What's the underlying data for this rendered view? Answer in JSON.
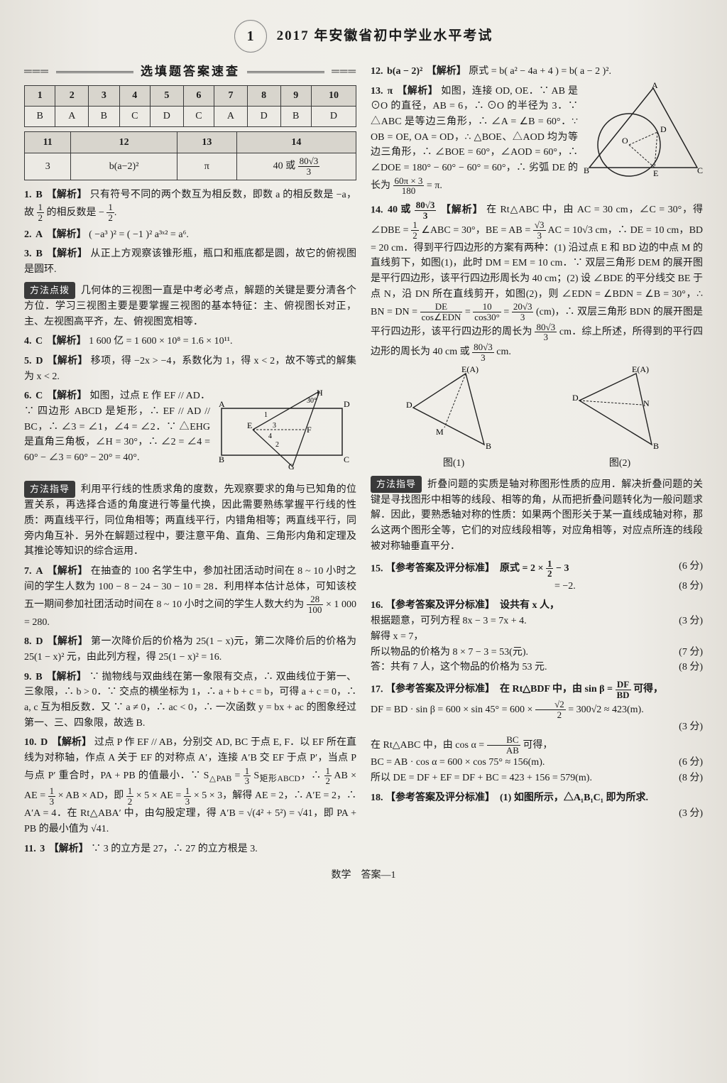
{
  "page_number": "1",
  "title": "2017 年安徽省初中学业水平考试",
  "quickcheck_label": "选填题答案速查",
  "table1": {
    "headers": [
      "1",
      "2",
      "3",
      "4",
      "5",
      "6",
      "7",
      "8",
      "9",
      "10"
    ],
    "row": [
      "B",
      "A",
      "B",
      "C",
      "D",
      "C",
      "A",
      "D",
      "B",
      "D"
    ]
  },
  "table2": {
    "headers": [
      "11",
      "12",
      "13",
      "14"
    ],
    "row": [
      "3",
      "b(a−2)²",
      "π",
      "40 或 <span class='frac'><span class='n'>80√3</span><span class='d'>3</span></span>"
    ]
  },
  "left": {
    "e1": {
      "n": "1.",
      "a": "B",
      "tag": "【解析】",
      "text": "只有符号不同的两个数互为相反数，即数 a 的相反数是 −a，故 <span class='frac'><span class='n'>1</span><span class='d'>2</span></span> 的相反数是 − <span class='frac'><span class='n'>1</span><span class='d'>2</span></span>."
    },
    "e2": {
      "n": "2.",
      "a": "A",
      "tag": "【解析】",
      "text": "( −a³ )² = ( −1 )² a³ˣ² = a⁶."
    },
    "e3": {
      "n": "3.",
      "a": "B",
      "tag": "【解析】",
      "text": "从正上方观察该锥形瓶，瓶口和瓶底都是圆，故它的俯视图是圆环."
    },
    "m1_badge": "方法点拨",
    "m1_text": "几何体的三视图一直是中考必考点，解题的关键是要分清各个方位．学习三视图主要是要掌握三视图的基本特征：主、俯视图长对正，主、左视图高平齐，左、俯视图宽相等．",
    "e4": {
      "n": "4.",
      "a": "C",
      "tag": "【解析】",
      "text": "1 600 亿 = 1 600 × 10⁸ = 1.6 × 10¹¹."
    },
    "e5": {
      "n": "5.",
      "a": "D",
      "tag": "【解析】",
      "text": "移项，得 −2x > −4，系数化为 1，得 x < 2，故不等式的解集为 x < 2."
    },
    "e6": {
      "n": "6.",
      "a": "C",
      "tag": "【解析】",
      "text": "如图，过点 E 作 EF // AD．∵ 四边形 ABCD 是矩形，∴ EF // AD // BC，∴ ∠3 = ∠1，∠4 = ∠2．∵ △EHG 是直角三角板，∠H = 30°，∴ ∠2 = ∠4 = 60° − ∠3 = 60° − 20° = 40°."
    },
    "m2_badge": "方法指导",
    "m2_text": "利用平行线的性质求角的度数，先观察要求的角与已知角的位置关系，再选择合适的角度进行等量代换，因此需要熟练掌握平行线的性质：两直线平行，同位角相等；两直线平行，内错角相等；两直线平行，同旁内角互补．另外在解题过程中，要注意平角、直角、三角形内角和定理及其推论等知识的综合运用．",
    "e7": {
      "n": "7.",
      "a": "A",
      "tag": "【解析】",
      "text": "在抽查的 100 名学生中，参加社团活动时间在 8 ~ 10 小时之间的学生人数为 100 − 8 − 24 − 30 − 10 = 28．利用样本估计总体，可知该校五一期间参加社团活动时间在 8 ~ 10 小时之间的学生人数大约为 <span class='frac'><span class='n'>28</span><span class='d'>100</span></span> × 1 000 = 280."
    },
    "e8": {
      "n": "8.",
      "a": "D",
      "tag": "【解析】",
      "text": "第一次降价后的价格为 25(1 − x)元，第二次降价后的价格为 25(1 − x)² 元，由此列方程，得 25(1 − x)² = 16."
    },
    "e9": {
      "n": "9.",
      "a": "B",
      "tag": "【解析】",
      "text": "∵ 抛物线与双曲线在第一象限有交点，∴ 双曲线位于第一、三象限，∴ b > 0．∵ 交点的横坐标为 1，∴ a + b + c = b，可得 a + c = 0，∴ a, c 互为相反数．又 ∵ a ≠ 0，∴ ac < 0，∴ 一次函数 y = bx + ac 的图象经过第一、三、四象限，故选 B."
    },
    "e10": {
      "n": "10.",
      "a": "D",
      "tag": "【解析】",
      "text": "过点 P 作 EF // AB，分别交 AD, BC 于点 E, F．以 EF 所在直线为对称轴，作点 A 关于 EF 的对称点 A′，连接 A′B 交 EF 于点 P′，当点 P 与点 P′ 重合时，PA + PB 的值最小．∵ S<sub>△PAB</sub> = <span class='frac'><span class='n'>1</span><span class='d'>3</span></span> S<sub>矩形ABCD</sub>，∴ <span class='frac'><span class='n'>1</span><span class='d'>2</span></span> AB × AE = <span class='frac'><span class='n'>1</span><span class='d'>3</span></span> × AB × AD，即 <span class='frac'><span class='n'>1</span><span class='d'>2</span></span> × 5 × AE = <span class='frac'><span class='n'>1</span><span class='d'>3</span></span> × 5 × 3，解得 AE = 2，∴ A′E = 2，∴ A′A = 4．在 Rt△ABA′ 中，由勾股定理，得 A′B = √(4² + 5²) = √41，即 PA + PB 的最小值为 √41."
    },
    "e11": {
      "n": "11.",
      "a": "3",
      "tag": "【解析】",
      "text": "∵ 3 的立方是 27，∴ 27 的立方根是 3."
    }
  },
  "right": {
    "e12": {
      "n": "12.",
      "a": "b(a − 2)²",
      "tag": "【解析】",
      "text": "原式 = b( a² − 4a + 4 ) = b( a − 2 )²."
    },
    "e13": {
      "n": "13.",
      "a": "π",
      "tag": "【解析】",
      "text": "如图，连接 OD, OE．∵ AB 是 ⊙O 的直径，AB = 6，∴ ⊙O 的半径为 3．∵ △ABC 是等边三角形，∴ ∠A = ∠B = 60°．∵ OB = OE, OA = OD，∴ △BOE、△AOD 均为等边三角形，∴ ∠BOE = 60°，∠AOD = 60°，∴ ∠DOE = 180° − 60° − 60° = 60°，∴ 劣弧 DE 的长为 <span class='frac'><span class='n'>60π × 3</span><span class='d'>180</span></span> = π."
    },
    "e14": {
      "n": "14.",
      "a": "40 或 <span class='frac'><span class='n'>80√3</span><span class='d'>3</span></span>",
      "tag": "【解析】",
      "text": "在 Rt△ABC 中，由 AC = 30 cm，∠C = 30°，得 ∠DBE = <span class='frac'><span class='n'>1</span><span class='d'>2</span></span> ∠ABC = 30°，BE = AB = <span class='frac'><span class='n'>√3</span><span class='d'>3</span></span> AC = 10√3 cm，∴ DE = 10 cm，BD = 20 cm．得到平行四边形的方案有两种：(1) 沿过点 E 和 BD 边的中点 M 的直线剪下，如图(1)，此时 DM = EM = 10 cm．∵ 双层三角形 DEM 的展开图是平行四边形，该平行四边形周长为 40 cm；(2) 设 ∠BDE 的平分线交 BE 于点 N，沿 DN 所在直线剪开，如图(2)，则 ∠EDN = ∠BDN = ∠B = 30°，∴ BN = DN = <span class='frac'><span class='n'>DE</span><span class='d'>cos∠EDN</span></span> = <span class='frac'><span class='n'>10</span><span class='d'>cos30°</span></span> = <span class='frac'><span class='n'>20√3</span><span class='d'>3</span></span> (cm)，∴ 双层三角形 BDN 的展开图是平行四边形，该平行四边形的周长为 <span class='frac'><span class='n'>80√3</span><span class='d'>3</span></span> cm．综上所述，所得到的平行四边形的周长为 40 cm 或 <span class='frac'><span class='n'>80√3</span><span class='d'>3</span></span> cm."
    },
    "fig1_label": "图(1)",
    "fig2_label": "图(2)",
    "m3_badge": "方法指导",
    "m3_text": "折叠问题的实质是轴对称图形性质的应用．解决折叠问题的关键是寻找图形中相等的线段、相等的角，从而把折叠问题转化为一般问题求解．因此，要熟悉轴对称的性质：如果两个图形关于某一直线成轴对称，那么这两个图形全等，它们的对应线段相等，对应角相等，对应点所连的线段被对称轴垂直平分．",
    "e15_l1": "【参考答案及评分标准】　原式 = 2 × <span class='frac'><span class='n'>1</span><span class='d'>2</span></span> − 3",
    "e15_s1": "(6 分)",
    "e15_l2": "　　　　= −2.",
    "e15_s2": "(8 分)",
    "e16_h": "【参考答案及评分标准】　设共有 x 人，",
    "e16_l1": "根据题意，可列方程 8x − 3 = 7x + 4.",
    "e16_s1": "(3 分)",
    "e16_l2": "解得 x = 7，",
    "e16_l3": "所以物品的价格为 8 × 7 − 3 = 53(元).",
    "e16_s3": "(7 分)",
    "e16_l4": "答：共有 7 人，这个物品的价格为 53 元.",
    "e16_s4": "(8 分)",
    "e17_h": "【参考答案及评分标准】　在 Rt△BDF 中，由 sin β = <span class='frac'><span class='n'>DF</span><span class='d'>BD</span></span> 可得，",
    "e17_l1": "DF = BD · sin β = 600 × sin 45° = 600 × <span class='frac'><span class='n'>√2</span><span class='d'>2</span></span> = 300√2 ≈ 423(m).",
    "e17_s1": "(3 分)",
    "e17_l2": "在 Rt△ABC 中，由 cos α = <span class='frac'><span class='n'>BC</span><span class='d'>AB</span></span> 可得，",
    "e17_l3": "BC = AB · cos α = 600 × cos 75° ≈ 156(m).",
    "e17_s3": "(6 分)",
    "e17_l4": "所以 DE = DF + EF = DF + BC = 423 + 156 = 579(m).",
    "e17_s4": "(8 分)",
    "e18_h": "【参考答案及评分标准】　(1) 如图所示，△A₁B₁C₁ 即为所求.",
    "e18_s": "(3 分)"
  },
  "footer": "数学　答案—1"
}
